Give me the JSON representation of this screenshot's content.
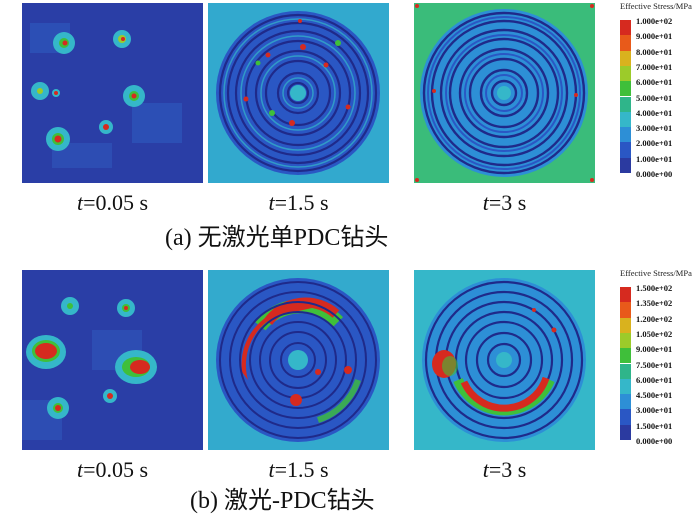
{
  "row_a": {
    "caption": "(a)  无激光单PDC钻头",
    "times": [
      {
        "var": "t",
        "value": "=0.05 s"
      },
      {
        "var": "t",
        "value": "=1.5 s"
      },
      {
        "var": "t",
        "value": "=3 s"
      }
    ],
    "legend": {
      "title": "Effective Stress/MPa",
      "values": [
        "1.000e+02",
        "9.000e+01",
        "8.000e+01",
        "7.000e+01",
        "6.000e+01",
        "5.000e+01",
        "4.000e+01",
        "3.000e+01",
        "2.000e+01",
        "1.000e+01",
        "0.000e+00"
      ]
    }
  },
  "row_b": {
    "caption": "(b)  激光-PDC钻头",
    "times": [
      {
        "var": "t",
        "value": "=0.05 s"
      },
      {
        "var": "t",
        "value": "=1.5 s"
      },
      {
        "var": "t",
        "value": "=3 s"
      }
    ],
    "legend": {
      "title": "Effective Stress/MPa",
      "values": [
        "1.500e+02",
        "1.350e+02",
        "1.200e+02",
        "1.050e+02",
        "9.000e+01",
        "7.500e+01",
        "6.000e+01",
        "4.500e+01",
        "3.000e+01",
        "1.500e+01",
        "0.000e+00"
      ]
    }
  },
  "colors": {
    "scale": [
      "#d62a1f",
      "#e85a1a",
      "#d9b21e",
      "#9ccb2a",
      "#3fbf3a",
      "#2fb58a",
      "#35b7c9",
      "#2d8fd6",
      "#2a57c4",
      "#2b3aa0",
      "#1f2a8a"
    ]
  }
}
